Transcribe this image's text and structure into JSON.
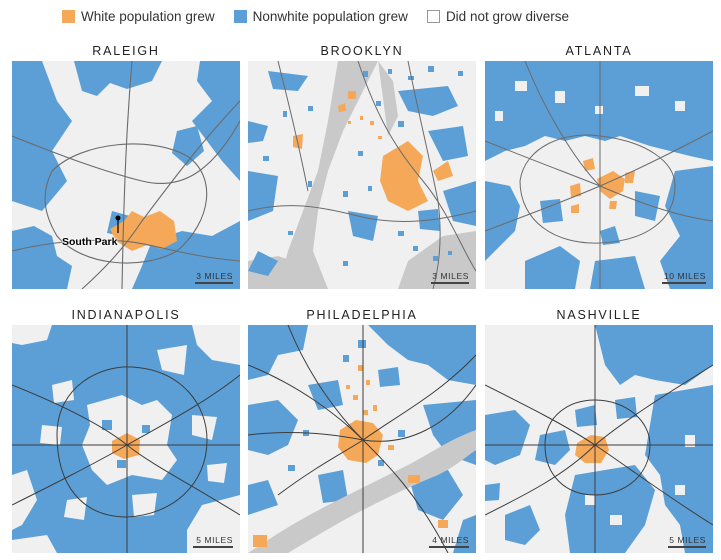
{
  "legend": {
    "items": [
      {
        "label": "White population grew",
        "color": "#f5a857"
      },
      {
        "label": "Nonwhite population grew",
        "color": "#5b9fd6"
      },
      {
        "label": "Did not grow diverse",
        "color": "#ffffff"
      }
    ]
  },
  "colors": {
    "white_grew": "#f5a857",
    "nonwhite_grew": "#5b9fd6",
    "background": "#f0f0f0",
    "roads": "#6b6b6b",
    "water": "#c9c9c9"
  },
  "maps": [
    {
      "title": "RALEIGH",
      "scale": "3 MILES",
      "callout": "South Park"
    },
    {
      "title": "BROOKLYN",
      "scale": "3 MILES"
    },
    {
      "title": "ATLANTA",
      "scale": "10 MILES"
    },
    {
      "title": "INDIANAPOLIS",
      "scale": "5 MILES"
    },
    {
      "title": "PHILADELPHIA",
      "scale": "4 MILES"
    },
    {
      "title": "NASHVILLE",
      "scale": "5 MILES"
    }
  ]
}
